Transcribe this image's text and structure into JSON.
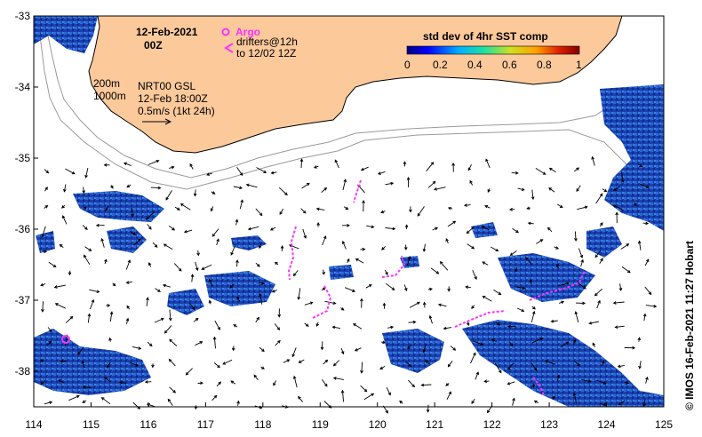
{
  "map": {
    "date_title": "12-Feb-2021",
    "time_title": "00Z",
    "argo_label": "Argo",
    "drifters_line1": "drifters@12h",
    "drifters_line2": "to 12/02 12Z",
    "isobath_200": "200m",
    "isobath_1000": "1000m",
    "product_line1": "NRT00 GSL",
    "product_line2": "12-Feb 18:00Z",
    "product_line3": "0.5m/s (1kt 24h)",
    "colorbar_title": "std dev of 4hr SST comp",
    "colorbar_ticks": [
      "0",
      "0.2",
      "0.4",
      "0.6",
      "0.8",
      "1"
    ],
    "credit": "© IMOS 16-Feb-2021 11:27 Hobart",
    "x_ticks": [
      "114",
      "115",
      "116",
      "117",
      "118",
      "119",
      "120",
      "121",
      "122",
      "123",
      "124",
      "125"
    ],
    "y_ticks": [
      "-33",
      "-34",
      "-35",
      "-36",
      "-37",
      "-38"
    ],
    "colors": {
      "land": "#fcc99b",
      "argo": "#ff33ff",
      "drifter": "#ff33ff",
      "sst_low": "#1030a0",
      "sst_mid": "#2f6fd8",
      "isobath": "#999999"
    }
  }
}
